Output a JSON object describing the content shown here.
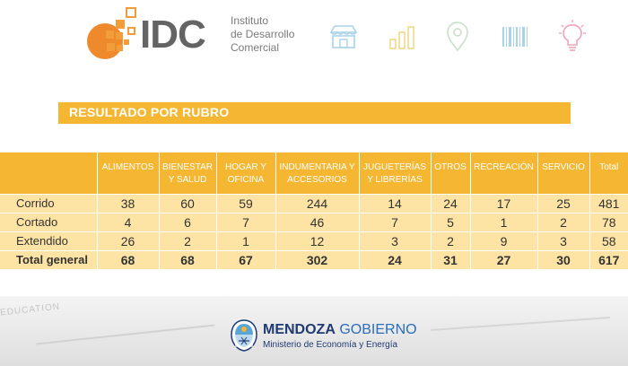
{
  "header": {
    "logo_text": "IDC",
    "logo_subtitle": [
      "Instituto",
      "de Desarrollo",
      "Comercial"
    ],
    "icons": [
      "storefront-icon",
      "bar-chart-icon",
      "location-pin-icon",
      "barcode-icon",
      "lightbulb-icon"
    ]
  },
  "title": "RESULTADO POR RUBRO",
  "table": {
    "headers": [
      "",
      "ALIMENTOS",
      "BIENESTAR Y SALUD",
      "HOGAR Y OFICINA",
      "INDUMENTARIA Y ACCESORIOS",
      "JUGUETERÍAS Y LIBRERÍAS",
      "OTROS",
      "RECREACIÓN",
      "SERVICIO",
      "Total"
    ],
    "rows": [
      {
        "label": "Corrido",
        "values": [
          "38",
          "60",
          "59",
          "244",
          "14",
          "24",
          "17",
          "25",
          "481"
        ]
      },
      {
        "label": "Cortado",
        "values": [
          "4",
          "6",
          "7",
          "46",
          "7",
          "5",
          "1",
          "2",
          "78"
        ]
      },
      {
        "label": "Extendido",
        "values": [
          "26",
          "2",
          "1",
          "12",
          "3",
          "2",
          "9",
          "3",
          "58"
        ]
      },
      {
        "label": "Total general",
        "values": [
          "68",
          "68",
          "67",
          "302",
          "24",
          "31",
          "27",
          "30",
          "617"
        ]
      }
    ]
  },
  "footer": {
    "org_bold": "MENDOZA",
    "org_rest": "GOBIERNO",
    "org_sub": "Ministerio de Economía y Energía",
    "background_text": "EDUCATION"
  },
  "colors": {
    "accent": "#f5b731",
    "cell": "#fde3a4",
    "logo_orange": "#ef8a2c",
    "mendoza_blue": "#1f3b73"
  }
}
